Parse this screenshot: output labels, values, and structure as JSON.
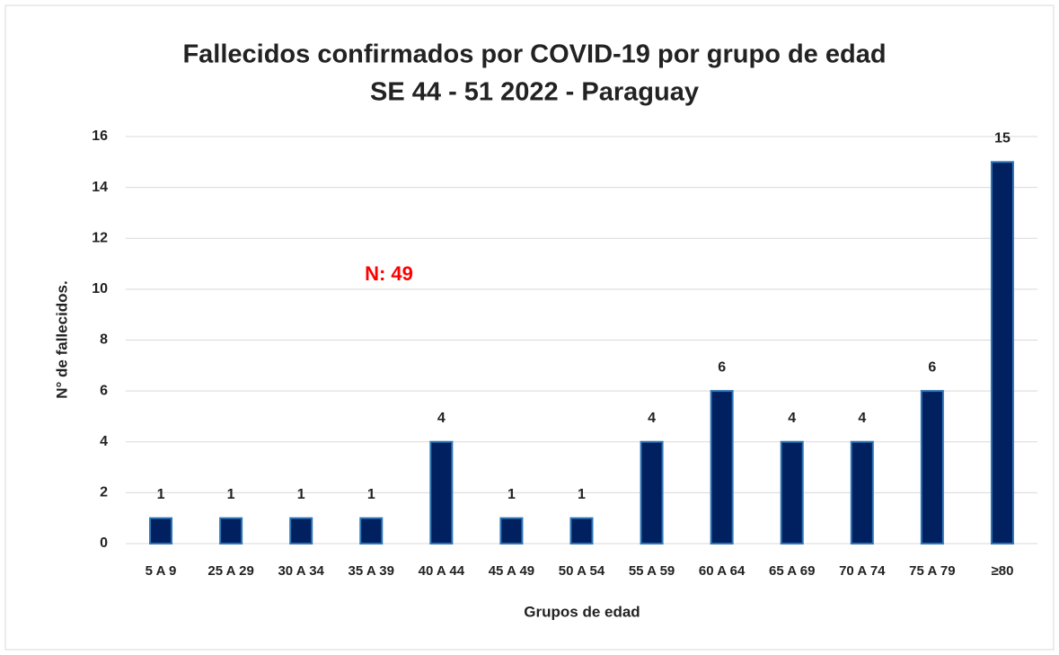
{
  "chart_data": {
    "type": "bar",
    "title": "Fallecidos confirmados por COVID-19 por grupo de edad",
    "subtitle": "SE 44 - 51 2022 - Paraguay",
    "annotation": "N: 49",
    "x_label": "Grupos de edad",
    "y_label": "N° de fallecidos.",
    "categories": [
      "5 A 9",
      "25 A 29",
      "30 A 34",
      "35 A 39",
      "40 A 44",
      "45 A 49",
      "50 A 54",
      "55 A 59",
      "60 A 64",
      "65 A 69",
      "70 A 74",
      "75 A 79",
      "≥80"
    ],
    "values": [
      1,
      1,
      1,
      1,
      4,
      1,
      1,
      4,
      6,
      4,
      4,
      6,
      15
    ],
    "color": "#002060",
    "ylim": [
      0,
      16
    ],
    "yticks": [
      0,
      2,
      4,
      6,
      8,
      10,
      12,
      14,
      16
    ],
    "grid": true
  }
}
